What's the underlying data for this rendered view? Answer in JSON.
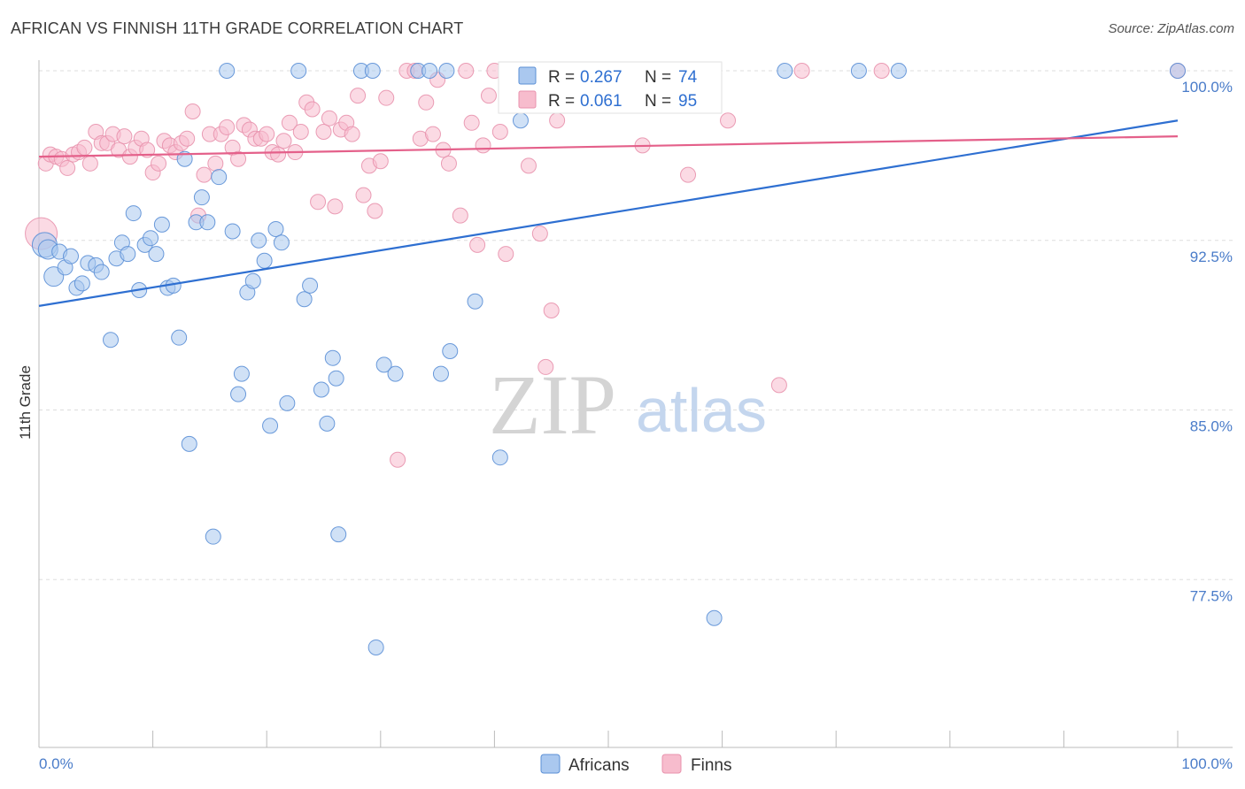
{
  "title": "AFRICAN VS FINNISH 11TH GRADE CORRELATION CHART",
  "source": "Source: ZipAtlas.com",
  "watermark": {
    "zip": "ZIP",
    "atlas": "atlas"
  },
  "colors": {
    "africans_fill": "#aac8ef",
    "africans_stroke": "#5b8fd6",
    "africans_line": "#2e6fd1",
    "finns_fill": "#f7bccd",
    "finns_stroke": "#e892ad",
    "finns_line": "#e4608a",
    "tick_label": "#4a7cc9",
    "grid": "#dddddd"
  },
  "legend": {
    "r_label": "R =",
    "n_label": "N =",
    "africans": {
      "r": "0.267",
      "n": "74"
    },
    "finns": {
      "r": "0.061",
      "n": "95"
    }
  },
  "chart_data": {
    "type": "scatter",
    "title": "AFRICAN VS FINNISH 11TH GRADE CORRELATION CHART",
    "xlabel": "",
    "ylabel": "11th Grade",
    "xlim": [
      0,
      100
    ],
    "ylim": [
      70.5,
      101.3
    ],
    "x_tick_labels": [
      "0.0%",
      "100.0%"
    ],
    "y_ticks": [
      77.5,
      85.0,
      92.5,
      100.0
    ],
    "y_tick_labels": [
      "77.5%",
      "85.0%",
      "92.5%",
      "100.0%"
    ],
    "grid": "horizontal dashed",
    "legend_position": "top-center and bottom",
    "series": [
      {
        "name": "Africans",
        "r": 0.267,
        "n": 74,
        "trend": {
          "x": [
            0,
            100
          ],
          "y": [
            89.6,
            97.8
          ]
        },
        "points": [
          [
            0.5,
            92.3,
            3
          ],
          [
            0.8,
            92.1,
            2
          ],
          [
            1.3,
            90.9,
            2
          ],
          [
            1.8,
            92.0,
            1
          ],
          [
            2.3,
            91.3,
            1
          ],
          [
            2.8,
            91.8,
            1
          ],
          [
            3.3,
            90.4,
            1
          ],
          [
            3.8,
            90.6,
            1
          ],
          [
            4.3,
            91.5,
            1
          ],
          [
            5.0,
            91.4,
            1
          ],
          [
            5.5,
            91.1,
            1
          ],
          [
            6.3,
            88.1,
            1
          ],
          [
            6.8,
            91.7,
            1
          ],
          [
            7.3,
            92.4,
            1
          ],
          [
            7.8,
            91.9,
            1
          ],
          [
            8.3,
            93.7,
            1
          ],
          [
            8.8,
            90.3,
            1
          ],
          [
            9.3,
            92.3,
            1
          ],
          [
            9.8,
            92.6,
            1
          ],
          [
            10.3,
            91.9,
            1
          ],
          [
            10.8,
            93.2,
            1
          ],
          [
            11.3,
            90.4,
            1
          ],
          [
            11.8,
            90.5,
            1
          ],
          [
            12.3,
            88.2,
            1
          ],
          [
            12.8,
            96.1,
            1
          ],
          [
            13.2,
            83.5,
            1
          ],
          [
            13.8,
            93.3,
            1
          ],
          [
            14.3,
            94.4,
            1
          ],
          [
            14.8,
            93.3,
            1
          ],
          [
            15.3,
            79.4,
            1
          ],
          [
            15.8,
            95.3,
            1
          ],
          [
            16.5,
            100,
            1
          ],
          [
            17.0,
            92.9,
            1
          ],
          [
            17.5,
            85.7,
            1
          ],
          [
            17.8,
            86.6,
            1
          ],
          [
            18.3,
            90.2,
            1
          ],
          [
            18.8,
            90.7,
            1
          ],
          [
            19.3,
            92.5,
            1
          ],
          [
            19.8,
            91.6,
            1
          ],
          [
            20.3,
            84.3,
            1
          ],
          [
            20.8,
            93.0,
            1
          ],
          [
            21.3,
            92.4,
            1
          ],
          [
            21.8,
            85.3,
            1
          ],
          [
            22.8,
            100,
            1
          ],
          [
            23.3,
            89.9,
            1
          ],
          [
            23.8,
            90.5,
            1
          ],
          [
            24.8,
            85.9,
            1
          ],
          [
            25.3,
            84.4,
            1
          ],
          [
            25.8,
            87.3,
            1
          ],
          [
            26.1,
            86.4,
            1
          ],
          [
            26.3,
            79.5,
            1
          ],
          [
            28.3,
            100,
            1
          ],
          [
            29.3,
            100,
            1
          ],
          [
            29.6,
            74.5,
            1
          ],
          [
            30.3,
            87.0,
            1
          ],
          [
            31.3,
            86.6,
            1
          ],
          [
            33.3,
            100,
            1
          ],
          [
            34.3,
            100,
            1
          ],
          [
            35.3,
            86.6,
            1
          ],
          [
            35.8,
            100,
            1
          ],
          [
            36.1,
            87.6,
            1
          ],
          [
            38.3,
            89.8,
            1
          ],
          [
            40.5,
            82.9,
            1
          ],
          [
            42.3,
            97.8,
            1
          ],
          [
            42.8,
            100,
            1
          ],
          [
            50.5,
            100,
            1
          ],
          [
            55.8,
            99.1,
            1
          ],
          [
            59.3,
            75.8,
            1
          ],
          [
            65.5,
            100,
            1
          ],
          [
            72.0,
            100,
            1
          ],
          [
            75.5,
            100,
            1
          ],
          [
            100,
            100,
            1
          ]
        ]
      },
      {
        "name": "Finns",
        "r": 0.061,
        "n": 95,
        "trend": {
          "x": [
            0,
            100
          ],
          "y": [
            96.2,
            97.1
          ]
        },
        "points": [
          [
            0.2,
            92.8,
            4
          ],
          [
            0.6,
            95.9,
            1
          ],
          [
            1.0,
            96.3,
            1
          ],
          [
            1.5,
            96.2,
            1
          ],
          [
            2.0,
            96.1,
            1
          ],
          [
            2.5,
            95.7,
            1
          ],
          [
            3.0,
            96.3,
            1
          ],
          [
            3.5,
            96.4,
            1
          ],
          [
            4.0,
            96.6,
            1
          ],
          [
            4.5,
            95.9,
            1
          ],
          [
            5.0,
            97.3,
            1
          ],
          [
            5.5,
            96.8,
            1
          ],
          [
            6.0,
            96.8,
            1
          ],
          [
            6.5,
            97.2,
            1
          ],
          [
            7.0,
            96.5,
            1
          ],
          [
            7.5,
            97.1,
            1
          ],
          [
            8.0,
            96.2,
            1
          ],
          [
            8.5,
            96.6,
            1
          ],
          [
            9.0,
            97.0,
            1
          ],
          [
            9.5,
            96.5,
            1
          ],
          [
            10.0,
            95.5,
            1
          ],
          [
            10.5,
            95.9,
            1
          ],
          [
            11.0,
            96.9,
            1
          ],
          [
            11.5,
            96.7,
            1
          ],
          [
            12.0,
            96.4,
            1
          ],
          [
            12.5,
            96.8,
            1
          ],
          [
            13.0,
            97.0,
            1
          ],
          [
            13.5,
            98.2,
            1
          ],
          [
            14.0,
            93.6,
            1
          ],
          [
            14.5,
            95.4,
            1
          ],
          [
            15.0,
            97.2,
            1
          ],
          [
            15.5,
            95.9,
            1
          ],
          [
            16.0,
            97.2,
            1
          ],
          [
            16.5,
            97.5,
            1
          ],
          [
            17.0,
            96.6,
            1
          ],
          [
            17.5,
            96.1,
            1
          ],
          [
            18.0,
            97.6,
            1
          ],
          [
            18.5,
            97.4,
            1
          ],
          [
            19.0,
            97.0,
            1
          ],
          [
            19.5,
            97.0,
            1
          ],
          [
            20.0,
            97.2,
            1
          ],
          [
            20.5,
            96.4,
            1
          ],
          [
            21.0,
            96.3,
            1
          ],
          [
            21.5,
            96.9,
            1
          ],
          [
            22.0,
            97.7,
            1
          ],
          [
            22.5,
            96.4,
            1
          ],
          [
            23.0,
            97.3,
            1
          ],
          [
            23.5,
            98.6,
            1
          ],
          [
            24.0,
            98.3,
            1
          ],
          [
            24.5,
            94.2,
            1
          ],
          [
            25.0,
            97.3,
            1
          ],
          [
            25.5,
            97.9,
            1
          ],
          [
            26.0,
            94.0,
            1
          ],
          [
            26.5,
            97.4,
            1
          ],
          [
            27.0,
            97.7,
            1
          ],
          [
            27.5,
            97.2,
            1
          ],
          [
            28.0,
            98.9,
            1
          ],
          [
            28.5,
            94.5,
            1
          ],
          [
            29.0,
            95.8,
            1
          ],
          [
            29.5,
            93.8,
            1
          ],
          [
            30.0,
            96.0,
            1
          ],
          [
            30.5,
            98.8,
            1
          ],
          [
            31.5,
            82.8,
            1
          ],
          [
            32.3,
            100,
            1
          ],
          [
            33.0,
            100,
            1
          ],
          [
            33.5,
            97.0,
            1
          ],
          [
            34.0,
            98.6,
            1
          ],
          [
            34.6,
            97.2,
            1
          ],
          [
            35.0,
            99.6,
            1
          ],
          [
            35.5,
            96.5,
            1
          ],
          [
            36.0,
            95.9,
            1
          ],
          [
            37.0,
            93.6,
            1
          ],
          [
            37.5,
            100,
            1
          ],
          [
            38.0,
            97.7,
            1
          ],
          [
            38.5,
            92.3,
            1
          ],
          [
            39.0,
            96.7,
            1
          ],
          [
            39.5,
            98.9,
            1
          ],
          [
            40.0,
            100,
            1
          ],
          [
            40.5,
            97.3,
            1
          ],
          [
            41.0,
            91.9,
            1
          ],
          [
            42.0,
            99.7,
            1
          ],
          [
            42.5,
            98.7,
            1
          ],
          [
            43.0,
            95.8,
            1
          ],
          [
            43.5,
            100,
            1
          ],
          [
            44.0,
            92.8,
            1
          ],
          [
            44.5,
            86.9,
            1
          ],
          [
            45.0,
            89.4,
            1
          ],
          [
            45.5,
            97.8,
            1
          ],
          [
            53.0,
            96.7,
            1
          ],
          [
            57.0,
            95.4,
            1
          ],
          [
            60.5,
            97.8,
            1
          ],
          [
            65.0,
            86.1,
            1
          ],
          [
            67.0,
            100,
            1
          ],
          [
            74.0,
            100,
            1
          ],
          [
            100,
            100,
            1
          ]
        ]
      }
    ]
  }
}
